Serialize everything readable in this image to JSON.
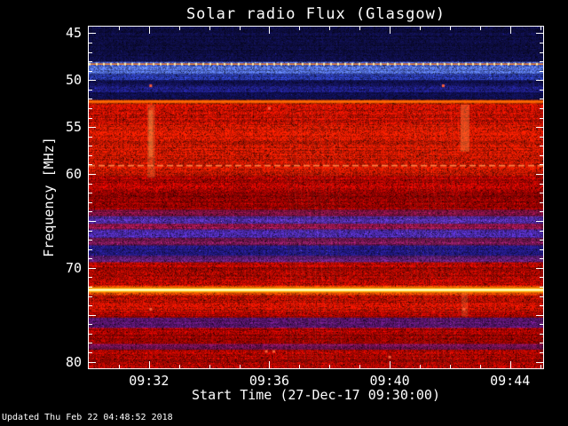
{
  "window": {
    "background": "#000000",
    "text_color": "#ffffff"
  },
  "footer": {
    "updated_text": "Updated Thu Feb 22 04:48:52 2018"
  },
  "chart_data": {
    "type": "heatmap",
    "title": "Solar radio Flux (Glasgow)",
    "xlabel": "Start Time (27-Dec-17 09:30:00)",
    "ylabel": "Frequency [MHz]",
    "grid": false,
    "legend": "none",
    "x_domain_minutes_after_0900": [
      30.0,
      45.1
    ],
    "x_major_ticks": [
      {
        "minutes": 32,
        "label": "09:32"
      },
      {
        "minutes": 36,
        "label": "09:36"
      },
      {
        "minutes": 40,
        "label": "09:40"
      },
      {
        "minutes": 44,
        "label": "09:44"
      }
    ],
    "x_minor_tick_step_minutes": 1,
    "y_domain_mhz": [
      44.3,
      80.7
    ],
    "y_axis_inverted": true,
    "y_major_ticks": [
      {
        "mhz": 45,
        "label": "45"
      },
      {
        "mhz": 50,
        "label": "50"
      },
      {
        "mhz": 55,
        "label": "55"
      },
      {
        "mhz": 60,
        "label": "60"
      },
      {
        "mhz": 65,
        "label": ""
      },
      {
        "mhz": 70,
        "label": "70"
      },
      {
        "mhz": 75,
        "label": ""
      },
      {
        "mhz": 80,
        "label": "80"
      }
    ],
    "y_minor_tick_step_mhz": 1,
    "bands": [
      [
        44.3,
        48.05,
        "#0d0d42"
      ],
      [
        48.05,
        48.55,
        "#3b56c0"
      ],
      [
        48.55,
        49.35,
        "#4f6ad4"
      ],
      [
        49.35,
        50.0,
        "#2838a8"
      ],
      [
        50.0,
        50.55,
        "#121258"
      ],
      [
        50.55,
        51.3,
        "#1b1b78"
      ],
      [
        51.3,
        52.1,
        "#0e0e4a"
      ],
      [
        52.1,
        52.55,
        "#c83200"
      ],
      [
        52.55,
        54.7,
        "#c01000"
      ],
      [
        54.7,
        60.2,
        "#d01800"
      ],
      [
        60.2,
        61.8,
        "#ab0500"
      ],
      [
        61.8,
        63.8,
        "#940200"
      ],
      [
        63.8,
        64.5,
        "#7c1040"
      ],
      [
        64.5,
        65.3,
        "#4c2898"
      ],
      [
        65.3,
        65.9,
        "#8c1448"
      ],
      [
        65.9,
        66.8,
        "#45269c"
      ],
      [
        66.8,
        67.6,
        "#7c1858"
      ],
      [
        67.6,
        68.7,
        "#241a86"
      ],
      [
        68.7,
        69.4,
        "#5c1c70"
      ],
      [
        69.4,
        71.9,
        "#ad0800"
      ],
      [
        71.9,
        72.9,
        "#d04000"
      ],
      [
        72.9,
        74.7,
        "#c01000"
      ],
      [
        74.7,
        75.3,
        "#a80600"
      ],
      [
        75.3,
        76.4,
        "#541468"
      ],
      [
        76.4,
        78.1,
        "#a30400"
      ],
      [
        78.1,
        78.7,
        "#6e1050"
      ],
      [
        78.7,
        80.7,
        "#a80600"
      ]
    ],
    "rfi_lines": [
      {
        "mhz": 48.3,
        "color": "#ff8830",
        "width": 1.5,
        "dash": null,
        "glow": false
      },
      {
        "mhz": 48.3,
        "color": "#fff0b0",
        "width": 3,
        "dash": [
          2,
          6
        ],
        "glow": false
      },
      {
        "mhz": 52.3,
        "color": "#ff6a00",
        "width": 2.5,
        "dash": null,
        "glow": false
      },
      {
        "mhz": 59.1,
        "color": "#ff8040",
        "width": 1.8,
        "dash": [
          7,
          4
        ],
        "glow": false
      },
      {
        "mhz": 72.35,
        "color": "#ffee66",
        "width": 3,
        "dash": null,
        "glow": true
      }
    ],
    "bursts": [
      {
        "t0": 31.95,
        "t1": 32.2,
        "f0": 52.6,
        "f1": 60.4,
        "color": "rgba(255,150,70,0.30)"
      },
      {
        "t0": 31.99,
        "t1": 32.13,
        "f0": 53.2,
        "f1": 58.2,
        "color": "rgba(255,195,95,0.28)"
      },
      {
        "t0": 42.35,
        "t1": 42.65,
        "f0": 52.6,
        "f1": 57.6,
        "color": "rgba(255,150,70,0.40)"
      },
      {
        "t0": 42.38,
        "t1": 42.6,
        "f0": 71.9,
        "f1": 75.2,
        "color": "rgba(255,170,80,0.22)"
      }
    ],
    "speckles": [
      {
        "t": 32.06,
        "mhz": 50.6
      },
      {
        "t": 41.78,
        "mhz": 50.6
      },
      {
        "t": 32.06,
        "mhz": 74.4
      },
      {
        "t": 42.47,
        "mhz": 74.4
      },
      {
        "t": 35.9,
        "mhz": 78.9
      },
      {
        "t": 36.15,
        "mhz": 78.9
      },
      {
        "t": 40.0,
        "mhz": 79.5
      },
      {
        "t": 36.0,
        "mhz": 53.0
      }
    ],
    "stripe_regions": [
      {
        "t0": 36.5,
        "t1": 38.4,
        "f0": 52.6,
        "f1": 80.7
      },
      {
        "t0": 40.5,
        "t1": 42.35,
        "f0": 52.6,
        "f1": 80.7
      }
    ]
  }
}
